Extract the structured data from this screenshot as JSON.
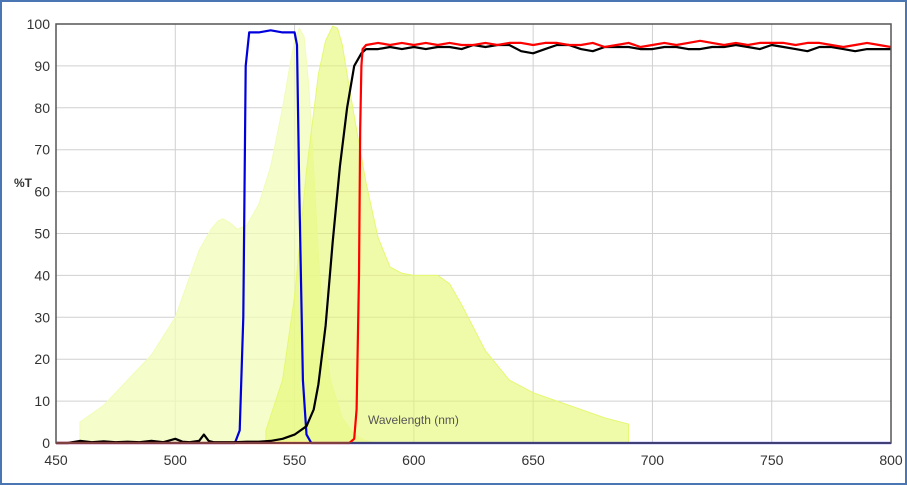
{
  "chart_data": {
    "type": "line",
    "xlabel": "Wavelength (nm)",
    "ylabel": "%T",
    "xlim": [
      450,
      800
    ],
    "ylim": [
      0,
      100
    ],
    "x_ticks": [
      450,
      500,
      550,
      600,
      650,
      700,
      750,
      800
    ],
    "y_ticks": [
      0,
      10,
      20,
      30,
      40,
      50,
      60,
      70,
      80,
      90,
      100
    ],
    "grid": true,
    "legend": "none",
    "areas": [
      {
        "color": "#f2fcb8",
        "opacity": 0.75,
        "x": [
          460,
          470,
          480,
          490,
          500,
          505,
          510,
          515,
          518,
          520,
          523,
          526,
          530,
          535,
          540,
          545,
          548,
          550,
          552,
          554,
          556,
          558,
          560,
          562,
          565,
          570,
          575,
          580,
          585
        ],
        "y": [
          5,
          9,
          15,
          21,
          30,
          38,
          46,
          51,
          53,
          53.5,
          52.5,
          51,
          52,
          57,
          66,
          80,
          90,
          96,
          99,
          97,
          85,
          65,
          45,
          28,
          15,
          6,
          2,
          0.5,
          0
        ]
      },
      {
        "color": "#e6f870",
        "opacity": 0.6,
        "x": [
          538,
          545,
          550,
          555,
          560,
          563,
          566,
          568,
          570,
          572,
          575,
          580,
          585,
          590,
          595,
          600,
          605,
          610,
          615,
          620,
          630,
          640,
          650,
          660,
          670,
          680,
          690
        ],
        "y": [
          3,
          15,
          35,
          65,
          88,
          96,
          99.5,
          99,
          95,
          88,
          78,
          62,
          49,
          42,
          40.5,
          40,
          40,
          40,
          38,
          33,
          22,
          15,
          12,
          10,
          8,
          6,
          4.5
        ]
      }
    ],
    "series": [
      {
        "color": "#0000dd",
        "x": [
          450,
          525,
          527,
          528.5,
          529.5,
          531,
          535,
          540,
          545,
          550,
          551,
          552,
          553.5,
          555,
          557,
          800
        ],
        "y": [
          0,
          0,
          3,
          30,
          90,
          98,
          98,
          98.5,
          98,
          98,
          95,
          60,
          15,
          2,
          0,
          0
        ]
      },
      {
        "color": "#000000",
        "x": [
          450,
          455,
          460,
          465,
          470,
          475,
          480,
          485,
          490,
          495,
          500,
          503,
          506,
          510,
          512,
          514,
          516,
          520,
          525,
          530,
          535,
          540,
          545,
          550,
          555,
          558,
          560,
          563,
          566,
          569,
          572,
          575,
          578,
          580,
          585,
          590,
          595,
          600,
          605,
          610,
          615,
          620,
          625,
          630,
          635,
          640,
          645,
          650,
          655,
          660,
          665,
          670,
          675,
          680,
          685,
          690,
          695,
          700,
          705,
          710,
          715,
          720,
          725,
          730,
          735,
          740,
          745,
          750,
          755,
          760,
          765,
          770,
          775,
          780,
          785,
          790,
          795,
          800
        ],
        "y": [
          0,
          0,
          0.5,
          0.2,
          0.4,
          0.2,
          0.3,
          0.2,
          0.5,
          0.2,
          1,
          0.3,
          0.2,
          0.5,
          2,
          0.5,
          0.2,
          0.2,
          0.2,
          0.3,
          0.3,
          0.5,
          1,
          2,
          4,
          8,
          14,
          28,
          48,
          66,
          80,
          90,
          93,
          94,
          94,
          94.5,
          94,
          94.5,
          94,
          94.5,
          94.5,
          94,
          95,
          94.5,
          95,
          95,
          93.5,
          93,
          94,
          95,
          95,
          94,
          93.5,
          94.5,
          94.5,
          94.5,
          94,
          94,
          94.5,
          94.5,
          94,
          94,
          94.5,
          94.5,
          95,
          94.5,
          94,
          95,
          94.5,
          94,
          93.5,
          94.5,
          94.5,
          94,
          93.5,
          94,
          94,
          94
        ]
      },
      {
        "color": "#ff0000",
        "x": [
          450,
          573,
          575,
          576,
          577,
          577.5,
          578,
          578.5,
          580,
          585,
          590,
          595,
          600,
          605,
          610,
          615,
          620,
          625,
          630,
          635,
          640,
          645,
          650,
          655,
          660,
          665,
          670,
          675,
          680,
          685,
          690,
          695,
          700,
          705,
          710,
          715,
          720,
          725,
          730,
          735,
          740,
          745,
          750,
          755,
          760,
          765,
          770,
          775,
          780,
          785,
          790,
          795,
          800
        ],
        "y": [
          0,
          0,
          1,
          8,
          40,
          75,
          90,
          94,
          95,
          95.5,
          95,
          95.5,
          95,
          95.5,
          95,
          95.5,
          95,
          95,
          95.5,
          95,
          95.5,
          95.5,
          95,
          95.5,
          95.5,
          95,
          95,
          95.5,
          94.5,
          95,
          95.5,
          94.5,
          95,
          95.5,
          95,
          95.5,
          96,
          95.5,
          95,
          95.5,
          95,
          95.5,
          95.5,
          95.5,
          95,
          95.5,
          95.5,
          95,
          94.5,
          95,
          95.5,
          95,
          94.5
        ]
      }
    ]
  }
}
